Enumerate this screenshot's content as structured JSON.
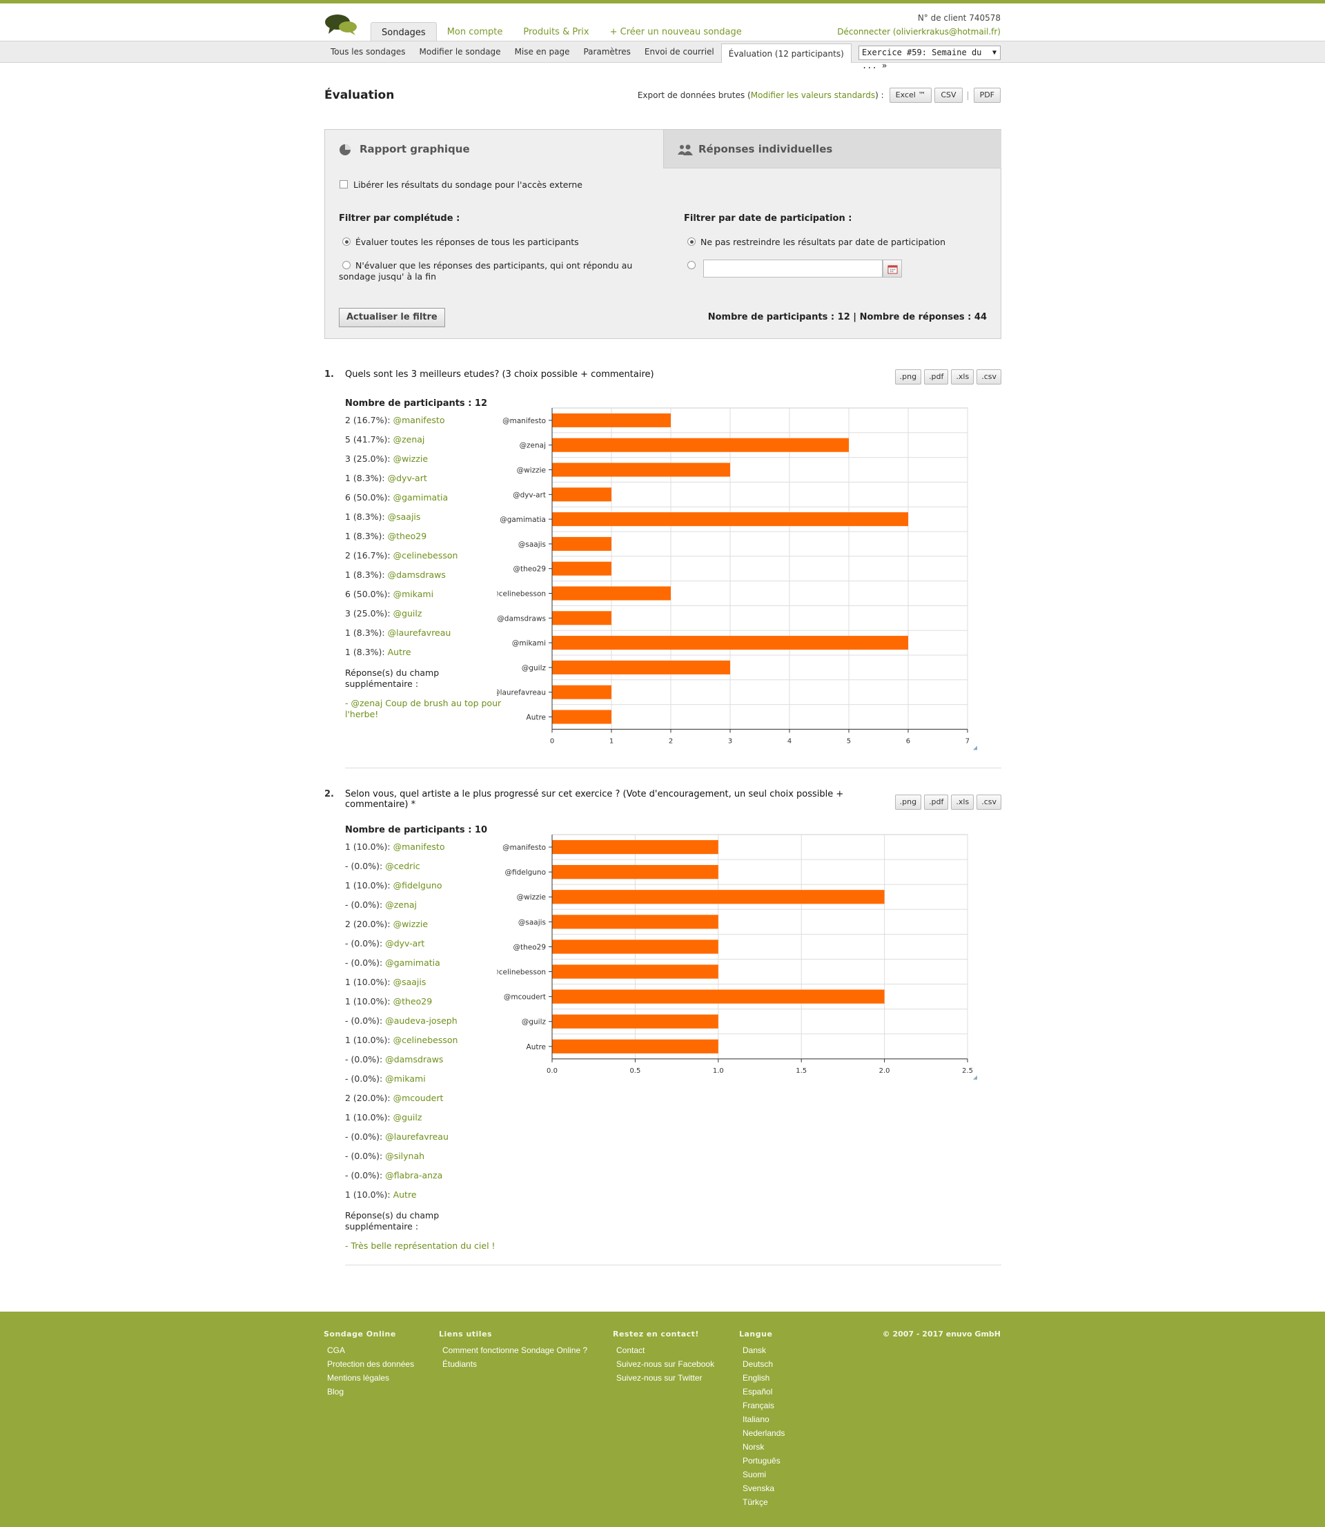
{
  "header": {
    "tabs": [
      "Sondages",
      "Mon compte",
      "Produits & Prix",
      "+ Créer un nouveau sondage"
    ],
    "client_no": "N° de client 740578",
    "logout": "Déconnecter (olivierkrakus@hotmail.fr)"
  },
  "subnav": {
    "items": [
      "Tous les sondages",
      "Modifier le sondage",
      "Mise en page",
      "Paramètres",
      "Envoi de courriel",
      "Évaluation (12 participants)"
    ],
    "exercise_select": "Exercice #59: Semaine du ... »"
  },
  "page": {
    "title": "Évaluation",
    "export_prefix": "Export de données brutes (",
    "export_link": "Modifier les valeurs standards",
    "export_suffix": ") :",
    "export_buttons": [
      "Excel ™",
      "CSV",
      "PDF"
    ]
  },
  "panel": {
    "tab_report": "Rapport graphique",
    "tab_individual": "Réponses individuelles",
    "release_label": "Libérer les résultats du sondage pour l'accès externe",
    "filter_completion_title": "Filtrer par complétude :",
    "filter_all": "Évaluer toutes les réponses de tous les participants",
    "filter_complete": "N'évaluer que les réponses des participants, qui ont répondu au sondage jusqu' à la fin",
    "filter_date_title": "Filtrer par date de participation :",
    "filter_no_date": "Ne pas restreindre les résultats par date de participation",
    "refresh_button": "Actualiser le filtre",
    "participants_label": "Nombre de participants :",
    "participants_value": "12",
    "responses_label": "Nombre de réponses :",
    "responses_value": "44"
  },
  "questions": [
    {
      "num": "1.",
      "title": "Quels sont les 3 meilleurs etudes? (3 choix possible + commentaire)",
      "participants": "Nombre de participants : 12",
      "stats": [
        [
          "2 (16.7%): ",
          "@manifesto"
        ],
        [
          "5 (41.7%): ",
          "@zenaj"
        ],
        [
          "3 (25.0%): ",
          "@wizzie"
        ],
        [
          "1 (8.3%): ",
          "@dyv-art"
        ],
        [
          "6 (50.0%): ",
          "@gamimatia"
        ],
        [
          "1 (8.3%): ",
          "@saajis"
        ],
        [
          "1 (8.3%): ",
          "@theo29"
        ],
        [
          "2 (16.7%): ",
          "@celinebesson"
        ],
        [
          "1 (8.3%): ",
          "@damsdraws"
        ],
        [
          "6 (50.0%): ",
          "@mikami"
        ],
        [
          "3 (25.0%): ",
          "@guilz"
        ],
        [
          "1 (8.3%): ",
          "@laurefavreau"
        ],
        [
          "1 (8.3%): ",
          "Autre"
        ]
      ],
      "extra_label": "Réponse(s) du champ supplémentaire :",
      "extra_answer": "- @zenaj Coup de brush au top pour l'herbe!"
    },
    {
      "num": "2.",
      "title": "Selon vous, quel artiste a le plus progressé sur cet exercice ? (Vote d'encouragement, un seul choix possible + commentaire) *",
      "participants": "Nombre de participants : 10",
      "stats": [
        [
          "1 (10.0%): ",
          "@manifesto"
        ],
        [
          "- (0.0%): ",
          "@cedric"
        ],
        [
          "1 (10.0%): ",
          "@fidelguno"
        ],
        [
          "- (0.0%): ",
          "@zenaj"
        ],
        [
          "2 (20.0%): ",
          "@wizzie"
        ],
        [
          "- (0.0%): ",
          "@dyv-art"
        ],
        [
          "- (0.0%): ",
          "@gamimatia"
        ],
        [
          "1 (10.0%): ",
          "@saajis"
        ],
        [
          "1 (10.0%): ",
          "@theo29"
        ],
        [
          "- (0.0%): ",
          "@audeva-joseph"
        ],
        [
          "1 (10.0%): ",
          "@celinebesson"
        ],
        [
          "- (0.0%): ",
          "@damsdraws"
        ],
        [
          "- (0.0%): ",
          "@mikami"
        ],
        [
          "2 (20.0%): ",
          "@mcoudert"
        ],
        [
          "1 (10.0%): ",
          "@guilz"
        ],
        [
          "- (0.0%): ",
          "@laurefavreau"
        ],
        [
          "- (0.0%): ",
          "@silynah"
        ],
        [
          "- (0.0%): ",
          "@flabra-anza"
        ],
        [
          "1 (10.0%): ",
          "Autre"
        ]
      ],
      "extra_label": "Réponse(s) du champ supplémentaire :",
      "extra_answer": "- Très belle représentation du ciel !"
    }
  ],
  "chart_buttons": [
    ".png",
    ".pdf",
    ".xls",
    ".csv"
  ],
  "chart_data": [
    {
      "type": "bar",
      "orientation": "horizontal",
      "categories": [
        "@manifesto",
        "@zenaj",
        "@wizzie",
        "@dyv-art",
        "@gamimatia",
        "@saajis",
        "@theo29",
        "@celinebesson",
        "@damsdraws",
        "@mikami",
        "@guilz",
        "@laurefavreau",
        "Autre"
      ],
      "values": [
        2,
        5,
        3,
        1,
        6,
        1,
        1,
        2,
        1,
        6,
        3,
        1,
        1
      ],
      "xlim": [
        0,
        7
      ],
      "ticks": [
        "0",
        "1",
        "2",
        "3",
        "4",
        "5",
        "6",
        "7"
      ],
      "grid": true,
      "color": "#ff6a00"
    },
    {
      "type": "bar",
      "orientation": "horizontal",
      "categories": [
        "@manifesto",
        "@fidelguno",
        "@wizzie",
        "@saajis",
        "@theo29",
        "@celinebesson",
        "@mcoudert",
        "@guilz",
        "Autre"
      ],
      "values": [
        1,
        1,
        2,
        1,
        1,
        1,
        2,
        1,
        1
      ],
      "xlim": [
        0,
        2.5
      ],
      "ticks": [
        "0.0",
        "0.5",
        "1.0",
        "1.5",
        "2.0",
        "2.5"
      ],
      "grid": true,
      "color": "#ff6a00"
    }
  ],
  "footer": {
    "cols": [
      {
        "title": "Sondage Online",
        "links": [
          "CGA",
          "Protection des données",
          "Mentions légales",
          "Blog"
        ]
      },
      {
        "title": "Liens utiles",
        "links": [
          "Comment fonctionne Sondage Online ?",
          "Étudiants"
        ]
      },
      {
        "title": "Restez en contact!",
        "links": [
          "Contact",
          "Suivez-nous sur Facebook",
          "Suivez-nous sur Twitter"
        ]
      },
      {
        "title": "Langue",
        "links": [
          "Dansk",
          "Deutsch",
          "English",
          "Español",
          "Français",
          "Italiano",
          "Nederlands",
          "Norsk",
          "Português",
          "Suomi",
          "Svenska",
          "Türkçe"
        ]
      }
    ],
    "copyright": "© 2007 - 2017 enuvo GmbH"
  },
  "colors": {
    "brand": "#94a83b",
    "link": "#6e8f1a",
    "bar": "#ff6a00"
  }
}
